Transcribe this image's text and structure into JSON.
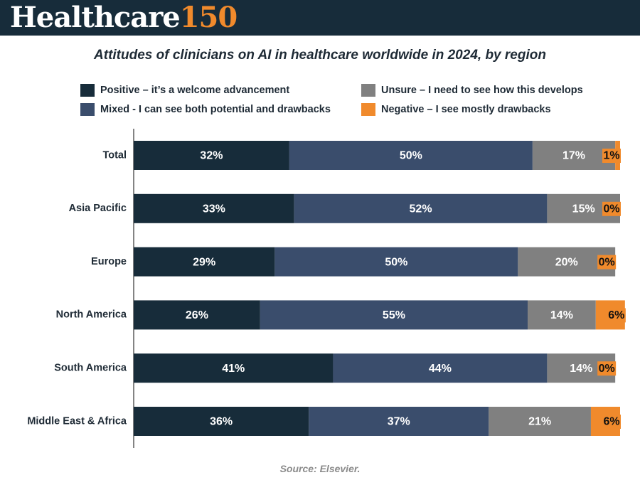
{
  "brand": {
    "word": "Healthcare",
    "number": "150"
  },
  "colors": {
    "header_bg": "#172c3a",
    "brand_accent": "#f08a2c"
  },
  "chart_data": {
    "type": "bar",
    "orientation": "horizontal",
    "stacked": true,
    "title": "Attitudes of clinicians on AI in healthcare worldwide in 2024, by region",
    "xlabel": "",
    "ylabel": "",
    "xlim": [
      0,
      100
    ],
    "grid": false,
    "legend_position": "top",
    "categories": [
      "Total",
      "Asia Pacific",
      "Europe",
      "North America",
      "South America",
      "Middle East & Africa"
    ],
    "series": [
      {
        "name": "Positive – it’s a welcome advancement",
        "color": "#172c3a",
        "label_color": "#ffffff",
        "values": [
          32,
          33,
          29,
          26,
          41,
          36
        ]
      },
      {
        "name": "Mixed - I can see both potential and drawbacks",
        "color": "#3a4d6c",
        "label_color": "#ffffff",
        "values": [
          50,
          52,
          50,
          55,
          44,
          37
        ]
      },
      {
        "name": "Unsure – I need to see how this develops",
        "color": "#808080",
        "label_color": "#ffffff",
        "values": [
          17,
          15,
          20,
          14,
          14,
          21
        ]
      },
      {
        "name": "Negative – I see mostly drawbacks",
        "color": "#f08a2c",
        "label_color": "#111111",
        "values": [
          1,
          0,
          0,
          6,
          0,
          6
        ]
      }
    ],
    "source": "Source: Elsevier."
  }
}
